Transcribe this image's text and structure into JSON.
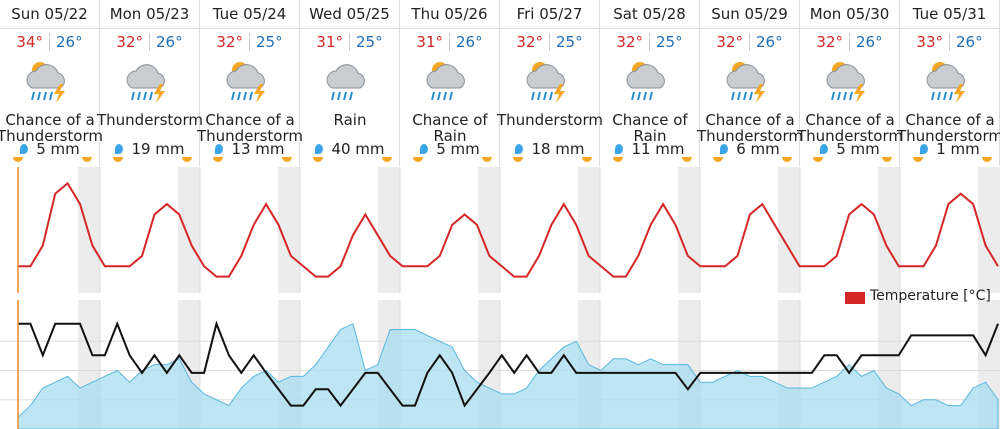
{
  "days": [
    {
      "label": "Sun 05/22",
      "high": "34°",
      "low": "26°",
      "condition": "Chance of a Thunderstorm",
      "precip": "5 mm"
    },
    {
      "label": "Mon 05/23",
      "high": "32°",
      "low": "26°",
      "condition": "Thunderstorm",
      "precip": "19 mm"
    },
    {
      "label": "Tue 05/24",
      "high": "32°",
      "low": "25°",
      "condition": "Chance of a Thunderstorm",
      "precip": "13 mm"
    },
    {
      "label": "Wed 05/25",
      "high": "31°",
      "low": "25°",
      "condition": "Rain",
      "precip": "40 mm"
    },
    {
      "label": "Thu 05/26",
      "high": "31°",
      "low": "26°",
      "condition": "Chance of Rain",
      "precip": "5 mm"
    },
    {
      "label": "Fri 05/27",
      "high": "32°",
      "low": "25°",
      "condition": "Thunderstorm",
      "precip": "18 mm"
    },
    {
      "label": "Sat 05/28",
      "high": "32°",
      "low": "25°",
      "condition": "Chance of Rain",
      "precip": "11 mm"
    },
    {
      "label": "Sun 05/29",
      "high": "32°",
      "low": "26°",
      "condition": "Chance of a Thunderstorm",
      "precip": "6 mm"
    },
    {
      "label": "Mon 05/30",
      "high": "32°",
      "low": "26°",
      "condition": "Chance of a Thunderstorm",
      "precip": "5 mm"
    },
    {
      "label": "Tue 05/31",
      "high": "33°",
      "low": "26°",
      "condition": "Chance of a Thunderstorm",
      "precip": "1 mm"
    }
  ],
  "chart_data": [
    {
      "type": "line",
      "ylim": [
        24,
        35
      ],
      "night_shading": true,
      "series": [
        {
          "name": "Temperature [°C]",
          "color": "#d62728",
          "values": [
            26,
            26,
            28,
            33,
            34,
            32,
            28,
            26,
            26,
            26,
            27,
            31,
            32,
            31,
            28,
            26,
            25,
            25,
            27,
            30,
            32,
            30,
            27,
            26,
            25,
            25,
            26,
            29,
            31,
            29,
            27,
            26,
            26,
            26,
            27,
            30,
            31,
            30,
            27,
            26,
            25,
            25,
            27,
            30,
            32,
            30,
            27,
            26,
            25,
            25,
            27,
            30,
            32,
            30,
            27,
            26,
            26,
            26,
            27,
            31,
            32,
            30,
            28,
            26,
            26,
            26,
            27,
            31,
            32,
            31,
            28,
            26,
            26,
            26,
            28,
            32,
            33,
            32,
            28,
            26
          ]
        }
      ]
    },
    {
      "type": "line",
      "ylim": [
        0,
        100
      ],
      "night_shading": true,
      "series": [
        {
          "kind": "area",
          "color": "#a8dcef",
          "values": [
            10,
            20,
            35,
            40,
            45,
            35,
            40,
            45,
            50,
            40,
            50,
            55,
            55,
            60,
            40,
            30,
            25,
            20,
            35,
            45,
            50,
            40,
            45,
            45,
            55,
            70,
            85,
            90,
            50,
            55,
            85,
            85,
            85,
            80,
            75,
            70,
            50,
            40,
            35,
            30,
            30,
            35,
            50,
            60,
            70,
            75,
            55,
            50,
            60,
            60,
            55,
            60,
            55,
            55,
            55,
            40,
            40,
            45,
            50,
            45,
            45,
            40,
            35,
            35,
            35,
            40,
            45,
            55,
            45,
            50,
            35,
            30,
            20,
            25,
            25,
            20,
            20,
            35,
            40,
            25
          ]
        },
        {
          "kind": "line",
          "color": "#111111",
          "values": [
            90,
            90,
            63,
            90,
            90,
            90,
            63,
            63,
            90,
            63,
            48,
            63,
            48,
            63,
            48,
            48,
            90,
            63,
            48,
            63,
            48,
            34,
            20,
            20,
            34,
            34,
            20,
            34,
            48,
            48,
            34,
            20,
            20,
            48,
            63,
            48,
            20,
            34,
            48,
            63,
            48,
            63,
            48,
            48,
            63,
            48,
            48,
            48,
            48,
            48,
            48,
            48,
            48,
            48,
            34,
            48,
            48,
            48,
            48,
            48,
            48,
            48,
            48,
            48,
            48,
            63,
            63,
            48,
            63,
            63,
            63,
            63,
            80,
            80,
            80,
            80,
            80,
            80,
            63,
            90
          ]
        }
      ]
    }
  ]
}
